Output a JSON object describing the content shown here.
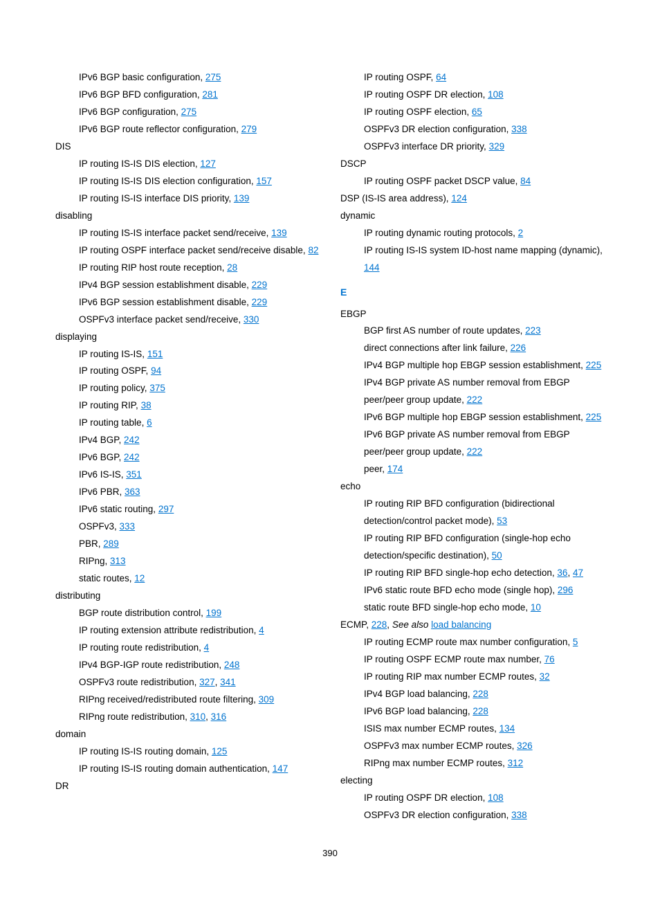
{
  "left_col": [
    {
      "type": "sub",
      "parts": [
        {
          "t": "IPv6 BGP basic configuration, "
        },
        {
          "t": "275",
          "link": true
        }
      ]
    },
    {
      "type": "sub",
      "parts": [
        {
          "t": "IPv6 BGP BFD configuration, "
        },
        {
          "t": "281",
          "link": true
        }
      ]
    },
    {
      "type": "sub",
      "parts": [
        {
          "t": "IPv6 BGP configuration, "
        },
        {
          "t": "275",
          "link": true
        }
      ]
    },
    {
      "type": "sub",
      "parts": [
        {
          "t": "IPv6 BGP route reflector configuration, "
        },
        {
          "t": "279",
          "link": true
        }
      ]
    },
    {
      "type": "entry",
      "parts": [
        {
          "t": "DIS"
        }
      ]
    },
    {
      "type": "sub",
      "parts": [
        {
          "t": "IP routing IS-IS DIS election, "
        },
        {
          "t": "127",
          "link": true
        }
      ]
    },
    {
      "type": "sub",
      "parts": [
        {
          "t": "IP routing IS-IS DIS election configuration, "
        },
        {
          "t": "157",
          "link": true
        }
      ]
    },
    {
      "type": "sub",
      "parts": [
        {
          "t": "IP routing IS-IS interface DIS priority, "
        },
        {
          "t": "139",
          "link": true
        }
      ]
    },
    {
      "type": "entry",
      "parts": [
        {
          "t": "disabling"
        }
      ]
    },
    {
      "type": "sub",
      "parts": [
        {
          "t": "IP routing IS-IS interface packet send/receive, "
        },
        {
          "t": "139",
          "link": true
        }
      ]
    },
    {
      "type": "sub",
      "parts": [
        {
          "t": "IP routing OSPF interface packet send/receive disable, "
        },
        {
          "t": "82",
          "link": true
        }
      ]
    },
    {
      "type": "sub",
      "parts": [
        {
          "t": "IP routing RIP host route reception, "
        },
        {
          "t": "28",
          "link": true
        }
      ]
    },
    {
      "type": "sub",
      "parts": [
        {
          "t": "IPv4 BGP session establishment disable, "
        },
        {
          "t": "229",
          "link": true
        }
      ]
    },
    {
      "type": "sub",
      "parts": [
        {
          "t": "IPv6 BGP session establishment disable, "
        },
        {
          "t": "229",
          "link": true
        }
      ]
    },
    {
      "type": "sub",
      "parts": [
        {
          "t": "OSPFv3 interface packet send/receive, "
        },
        {
          "t": "330",
          "link": true
        }
      ]
    },
    {
      "type": "entry",
      "parts": [
        {
          "t": "displaying"
        }
      ]
    },
    {
      "type": "sub",
      "parts": [
        {
          "t": "IP routing IS-IS, "
        },
        {
          "t": "151",
          "link": true
        }
      ]
    },
    {
      "type": "sub",
      "parts": [
        {
          "t": "IP routing OSPF, "
        },
        {
          "t": "94",
          "link": true
        }
      ]
    },
    {
      "type": "sub",
      "parts": [
        {
          "t": "IP routing policy, "
        },
        {
          "t": "375",
          "link": true
        }
      ]
    },
    {
      "type": "sub",
      "parts": [
        {
          "t": "IP routing RIP, "
        },
        {
          "t": "38",
          "link": true
        }
      ]
    },
    {
      "type": "sub",
      "parts": [
        {
          "t": "IP routing table, "
        },
        {
          "t": "6",
          "link": true
        }
      ]
    },
    {
      "type": "sub",
      "parts": [
        {
          "t": "IPv4 BGP, "
        },
        {
          "t": "242",
          "link": true
        }
      ]
    },
    {
      "type": "sub",
      "parts": [
        {
          "t": "IPv6 BGP, "
        },
        {
          "t": "242",
          "link": true
        }
      ]
    },
    {
      "type": "sub",
      "parts": [
        {
          "t": "IPv6 IS-IS, "
        },
        {
          "t": "351",
          "link": true
        }
      ]
    },
    {
      "type": "sub",
      "parts": [
        {
          "t": "IPv6 PBR, "
        },
        {
          "t": "363",
          "link": true
        }
      ]
    },
    {
      "type": "sub",
      "parts": [
        {
          "t": "IPv6 static routing, "
        },
        {
          "t": "297",
          "link": true
        }
      ]
    },
    {
      "type": "sub",
      "parts": [
        {
          "t": "OSPFv3, "
        },
        {
          "t": "333",
          "link": true
        }
      ]
    },
    {
      "type": "sub",
      "parts": [
        {
          "t": "PBR, "
        },
        {
          "t": "289",
          "link": true
        }
      ]
    },
    {
      "type": "sub",
      "parts": [
        {
          "t": "RIPng, "
        },
        {
          "t": "313",
          "link": true
        }
      ]
    },
    {
      "type": "sub",
      "parts": [
        {
          "t": "static routes, "
        },
        {
          "t": "12",
          "link": true
        }
      ]
    },
    {
      "type": "entry",
      "parts": [
        {
          "t": "distributing"
        }
      ]
    },
    {
      "type": "sub",
      "parts": [
        {
          "t": "BGP route distribution control, "
        },
        {
          "t": "199",
          "link": true
        }
      ]
    },
    {
      "type": "sub",
      "parts": [
        {
          "t": "IP routing extension attribute redistribution, "
        },
        {
          "t": "4",
          "link": true
        }
      ]
    },
    {
      "type": "sub",
      "parts": [
        {
          "t": "IP routing route redistribution, "
        },
        {
          "t": "4",
          "link": true
        }
      ]
    },
    {
      "type": "sub",
      "parts": [
        {
          "t": "IPv4 BGP-IGP route redistribution, "
        },
        {
          "t": "248",
          "link": true
        }
      ]
    },
    {
      "type": "sub",
      "parts": [
        {
          "t": "OSPFv3 route redistribution, "
        },
        {
          "t": "327",
          "link": true
        },
        {
          "t": ", "
        },
        {
          "t": "341",
          "link": true
        }
      ]
    },
    {
      "type": "sub",
      "parts": [
        {
          "t": "RIPng received/redistributed route filtering, "
        },
        {
          "t": "309",
          "link": true
        }
      ]
    },
    {
      "type": "sub",
      "parts": [
        {
          "t": "RIPng route redistribution, "
        },
        {
          "t": "310",
          "link": true
        },
        {
          "t": ", "
        },
        {
          "t": "316",
          "link": true
        }
      ]
    },
    {
      "type": "entry",
      "parts": [
        {
          "t": "domain"
        }
      ]
    },
    {
      "type": "sub",
      "parts": [
        {
          "t": "IP routing IS-IS routing domain, "
        },
        {
          "t": "125",
          "link": true
        }
      ]
    },
    {
      "type": "sub",
      "parts": [
        {
          "t": "IP routing IS-IS routing domain authentication, "
        },
        {
          "t": "147",
          "link": true
        }
      ]
    },
    {
      "type": "entry",
      "parts": [
        {
          "t": "DR"
        }
      ]
    }
  ],
  "right_col": [
    {
      "type": "sub",
      "parts": [
        {
          "t": "IP routing OSPF, "
        },
        {
          "t": "64",
          "link": true
        }
      ]
    },
    {
      "type": "sub",
      "parts": [
        {
          "t": "IP routing OSPF DR election, "
        },
        {
          "t": "108",
          "link": true
        }
      ]
    },
    {
      "type": "sub",
      "parts": [
        {
          "t": "IP routing OSPF election, "
        },
        {
          "t": "65",
          "link": true
        }
      ]
    },
    {
      "type": "sub",
      "parts": [
        {
          "t": "OSPFv3 DR election configuration, "
        },
        {
          "t": "338",
          "link": true
        }
      ]
    },
    {
      "type": "sub",
      "parts": [
        {
          "t": "OSPFv3 interface DR priority, "
        },
        {
          "t": "329",
          "link": true
        }
      ]
    },
    {
      "type": "entry",
      "parts": [
        {
          "t": "DSCP"
        }
      ]
    },
    {
      "type": "sub",
      "parts": [
        {
          "t": "IP routing OSPF packet DSCP value, "
        },
        {
          "t": "84",
          "link": true
        }
      ]
    },
    {
      "type": "entry",
      "parts": [
        {
          "t": "DSP (IS-IS area address), "
        },
        {
          "t": "124",
          "link": true
        }
      ]
    },
    {
      "type": "entry",
      "parts": [
        {
          "t": "dynamic"
        }
      ]
    },
    {
      "type": "sub",
      "parts": [
        {
          "t": "IP routing dynamic routing protocols, "
        },
        {
          "t": "2",
          "link": true
        }
      ]
    },
    {
      "type": "sub",
      "parts": [
        {
          "t": "IP routing IS-IS system ID-host name mapping (dynamic), "
        },
        {
          "t": "144",
          "link": true
        }
      ]
    },
    {
      "type": "letter",
      "text": "E"
    },
    {
      "type": "entry",
      "parts": [
        {
          "t": "EBGP"
        }
      ]
    },
    {
      "type": "sub",
      "parts": [
        {
          "t": "BGP first AS number of route updates, "
        },
        {
          "t": "223",
          "link": true
        }
      ]
    },
    {
      "type": "sub",
      "parts": [
        {
          "t": "direct connections after link failure, "
        },
        {
          "t": "226",
          "link": true
        }
      ]
    },
    {
      "type": "sub",
      "parts": [
        {
          "t": "IPv4 BGP multiple hop EBGP session establishment, "
        },
        {
          "t": "225",
          "link": true
        }
      ]
    },
    {
      "type": "sub",
      "parts": [
        {
          "t": "IPv4 BGP private AS number removal from EBGP peer/peer group update, "
        },
        {
          "t": "222",
          "link": true
        }
      ]
    },
    {
      "type": "sub",
      "parts": [
        {
          "t": "IPv6 BGP multiple hop EBGP session establishment, "
        },
        {
          "t": "225",
          "link": true
        }
      ]
    },
    {
      "type": "sub",
      "parts": [
        {
          "t": "IPv6 BGP private AS number removal from EBGP peer/peer group update, "
        },
        {
          "t": "222",
          "link": true
        }
      ]
    },
    {
      "type": "sub",
      "parts": [
        {
          "t": "peer, "
        },
        {
          "t": "174",
          "link": true
        }
      ]
    },
    {
      "type": "entry",
      "parts": [
        {
          "t": "echo"
        }
      ]
    },
    {
      "type": "sub",
      "parts": [
        {
          "t": "IP routing RIP BFD configuration (bidirectional detection/control packet mode), "
        },
        {
          "t": "53",
          "link": true
        }
      ]
    },
    {
      "type": "sub",
      "parts": [
        {
          "t": "IP routing RIP BFD configuration (single-hop echo detection/specific destination), "
        },
        {
          "t": "50",
          "link": true
        }
      ]
    },
    {
      "type": "sub",
      "parts": [
        {
          "t": "IP routing RIP BFD single-hop echo detection, "
        },
        {
          "t": "36",
          "link": true
        },
        {
          "t": ", "
        },
        {
          "t": "47",
          "link": true
        }
      ]
    },
    {
      "type": "sub",
      "parts": [
        {
          "t": "IPv6 static route BFD echo mode (single hop), "
        },
        {
          "t": "296",
          "link": true
        }
      ]
    },
    {
      "type": "sub",
      "parts": [
        {
          "t": "static route BFD single-hop echo mode, "
        },
        {
          "t": "10",
          "link": true
        }
      ]
    },
    {
      "type": "entry",
      "parts": [
        {
          "t": "ECMP, "
        },
        {
          "t": "228",
          "link": true
        },
        {
          "t": ", "
        },
        {
          "t": "See also",
          "italic": true
        },
        {
          "t": " "
        },
        {
          "t": "load balancing",
          "link": true
        }
      ]
    },
    {
      "type": "sub",
      "parts": [
        {
          "t": "IP routing ECMP route max number configuration, "
        },
        {
          "t": "5",
          "link": true
        }
      ]
    },
    {
      "type": "sub",
      "parts": [
        {
          "t": "IP routing OSPF ECMP route max number, "
        },
        {
          "t": "76",
          "link": true
        }
      ]
    },
    {
      "type": "sub",
      "parts": [
        {
          "t": "IP routing RIP max number ECMP routes, "
        },
        {
          "t": "32",
          "link": true
        }
      ]
    },
    {
      "type": "sub",
      "parts": [
        {
          "t": "IPv4 BGP load balancing, "
        },
        {
          "t": "228",
          "link": true
        }
      ]
    },
    {
      "type": "sub",
      "parts": [
        {
          "t": "IPv6 BGP load balancing, "
        },
        {
          "t": "228",
          "link": true
        }
      ]
    },
    {
      "type": "sub",
      "parts": [
        {
          "t": "ISIS max number ECMP routes, "
        },
        {
          "t": "134",
          "link": true
        }
      ]
    },
    {
      "type": "sub",
      "parts": [
        {
          "t": "OSPFv3 max number ECMP routes, "
        },
        {
          "t": "326",
          "link": true
        }
      ]
    },
    {
      "type": "sub",
      "parts": [
        {
          "t": "RIPng max number ECMP routes, "
        },
        {
          "t": "312",
          "link": true
        }
      ]
    },
    {
      "type": "entry",
      "parts": [
        {
          "t": "electing"
        }
      ]
    },
    {
      "type": "sub",
      "parts": [
        {
          "t": "IP routing OSPF DR election, "
        },
        {
          "t": "108",
          "link": true
        }
      ]
    },
    {
      "type": "sub",
      "parts": [
        {
          "t": "OSPFv3 DR election configuration, "
        },
        {
          "t": "338",
          "link": true
        }
      ]
    }
  ],
  "page_number": "390"
}
